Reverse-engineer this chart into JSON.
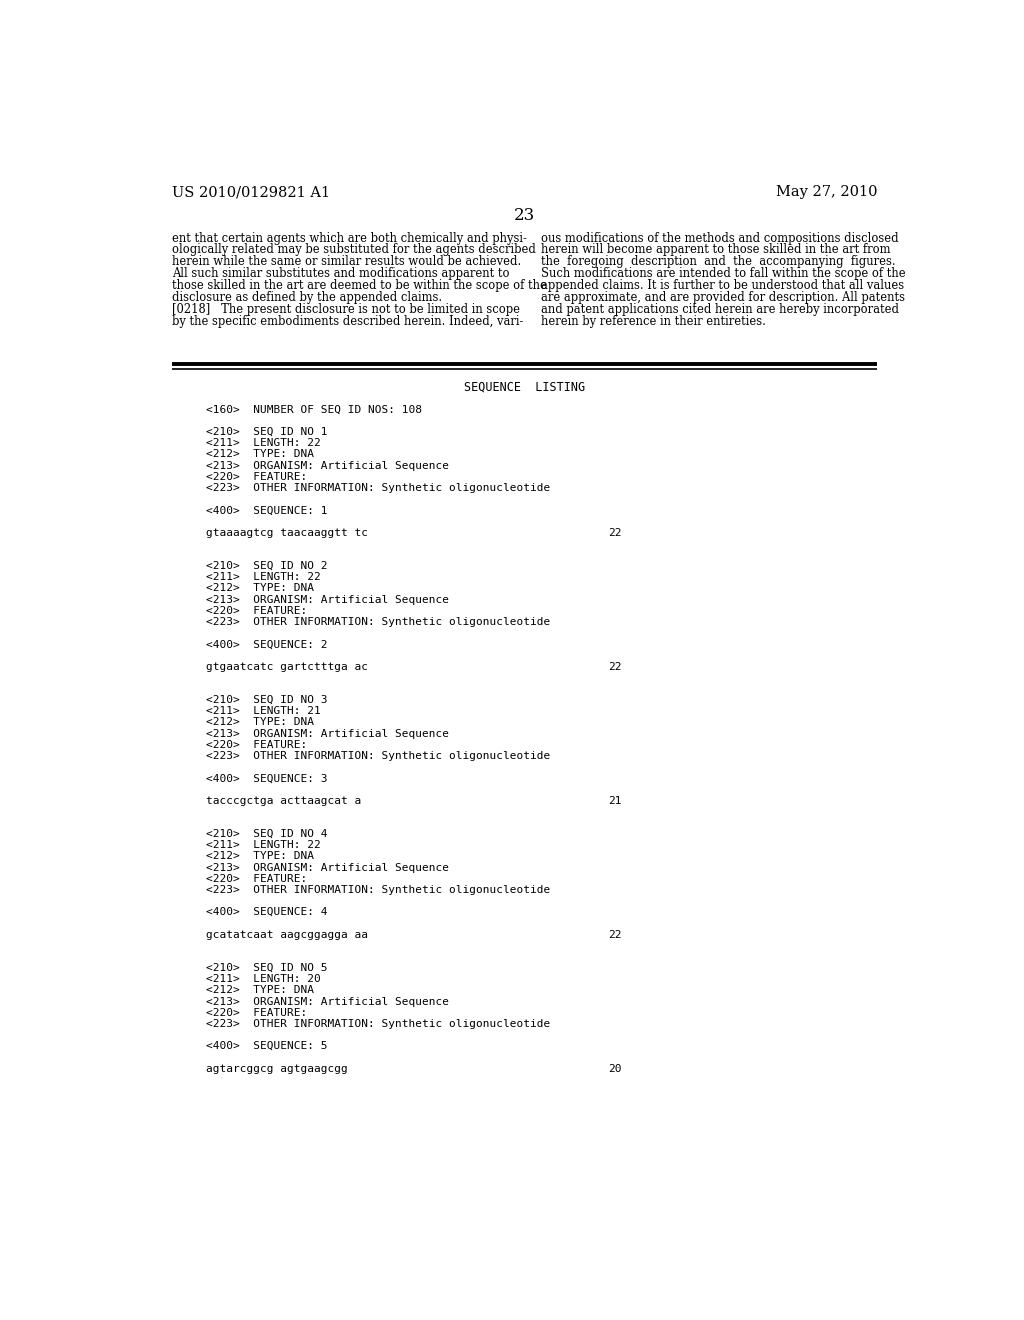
{
  "background_color": "#ffffff",
  "header_left": "US 2010/0129821 A1",
  "header_right": "May 27, 2010",
  "page_number": "23",
  "body_left_col": [
    "ent that certain agents which are both chemically and physi-",
    "ologically related may be substituted for the agents described",
    "herein while the same or similar results would be achieved.",
    "All such similar substitutes and modifications apparent to",
    "those skilled in the art are deemed to be within the scope of the",
    "disclosure as defined by the appended claims.",
    "[0218]   The present disclosure is not to be limited in scope",
    "by the specific embodiments described herein. Indeed, vari-"
  ],
  "body_right_col": [
    "ous modifications of the methods and compositions disclosed",
    "herein will become apparent to those skilled in the art from",
    "the  foregoing  description  and  the  accompanying  figures.",
    "Such modifications are intended to fall within the scope of the",
    "appended claims. It is further to be understood that all values",
    "are approximate, and are provided for description. All patents",
    "and patent applications cited herein are hereby incorporated",
    "herein by reference in their entireties."
  ],
  "sequence_listing_title": "SEQUENCE  LISTING",
  "seq_lines": [
    {
      "text": "<160>  NUMBER OF SEQ ID NOS: 108",
      "num": null
    },
    {
      "text": "",
      "num": null
    },
    {
      "text": "<210>  SEQ ID NO 1",
      "num": null
    },
    {
      "text": "<211>  LENGTH: 22",
      "num": null
    },
    {
      "text": "<212>  TYPE: DNA",
      "num": null
    },
    {
      "text": "<213>  ORGANISM: Artificial Sequence",
      "num": null
    },
    {
      "text": "<220>  FEATURE:",
      "num": null
    },
    {
      "text": "<223>  OTHER INFORMATION: Synthetic oligonucleotide",
      "num": null
    },
    {
      "text": "",
      "num": null
    },
    {
      "text": "<400>  SEQUENCE: 1",
      "num": null
    },
    {
      "text": "",
      "num": null
    },
    {
      "text": "gtaaaagtcg taacaaggtt tc",
      "num": "22"
    },
    {
      "text": "",
      "num": null
    },
    {
      "text": "",
      "num": null
    },
    {
      "text": "<210>  SEQ ID NO 2",
      "num": null
    },
    {
      "text": "<211>  LENGTH: 22",
      "num": null
    },
    {
      "text": "<212>  TYPE: DNA",
      "num": null
    },
    {
      "text": "<213>  ORGANISM: Artificial Sequence",
      "num": null
    },
    {
      "text": "<220>  FEATURE:",
      "num": null
    },
    {
      "text": "<223>  OTHER INFORMATION: Synthetic oligonucleotide",
      "num": null
    },
    {
      "text": "",
      "num": null
    },
    {
      "text": "<400>  SEQUENCE: 2",
      "num": null
    },
    {
      "text": "",
      "num": null
    },
    {
      "text": "gtgaatcatc gartctttga ac",
      "num": "22"
    },
    {
      "text": "",
      "num": null
    },
    {
      "text": "",
      "num": null
    },
    {
      "text": "<210>  SEQ ID NO 3",
      "num": null
    },
    {
      "text": "<211>  LENGTH: 21",
      "num": null
    },
    {
      "text": "<212>  TYPE: DNA",
      "num": null
    },
    {
      "text": "<213>  ORGANISM: Artificial Sequence",
      "num": null
    },
    {
      "text": "<220>  FEATURE:",
      "num": null
    },
    {
      "text": "<223>  OTHER INFORMATION: Synthetic oligonucleotide",
      "num": null
    },
    {
      "text": "",
      "num": null
    },
    {
      "text": "<400>  SEQUENCE: 3",
      "num": null
    },
    {
      "text": "",
      "num": null
    },
    {
      "text": "tacccgctga acttaagcat a",
      "num": "21"
    },
    {
      "text": "",
      "num": null
    },
    {
      "text": "",
      "num": null
    },
    {
      "text": "<210>  SEQ ID NO 4",
      "num": null
    },
    {
      "text": "<211>  LENGTH: 22",
      "num": null
    },
    {
      "text": "<212>  TYPE: DNA",
      "num": null
    },
    {
      "text": "<213>  ORGANISM: Artificial Sequence",
      "num": null
    },
    {
      "text": "<220>  FEATURE:",
      "num": null
    },
    {
      "text": "<223>  OTHER INFORMATION: Synthetic oligonucleotide",
      "num": null
    },
    {
      "text": "",
      "num": null
    },
    {
      "text": "<400>  SEQUENCE: 4",
      "num": null
    },
    {
      "text": "",
      "num": null
    },
    {
      "text": "gcatatcaat aagcggagga aa",
      "num": "22"
    },
    {
      "text": "",
      "num": null
    },
    {
      "text": "",
      "num": null
    },
    {
      "text": "<210>  SEQ ID NO 5",
      "num": null
    },
    {
      "text": "<211>  LENGTH: 20",
      "num": null
    },
    {
      "text": "<212>  TYPE: DNA",
      "num": null
    },
    {
      "text": "<213>  ORGANISM: Artificial Sequence",
      "num": null
    },
    {
      "text": "<220>  FEATURE:",
      "num": null
    },
    {
      "text": "<223>  OTHER INFORMATION: Synthetic oligonucleotide",
      "num": null
    },
    {
      "text": "",
      "num": null
    },
    {
      "text": "<400>  SEQUENCE: 5",
      "num": null
    },
    {
      "text": "",
      "num": null
    },
    {
      "text": "agtarcggcg agtgaagcgg",
      "num": "20"
    }
  ]
}
